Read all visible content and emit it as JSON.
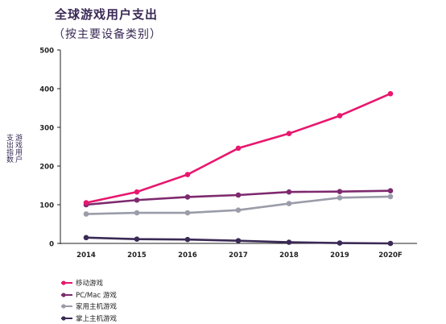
{
  "chart_data": {
    "type": "line",
    "title": "全球游戏用户支出",
    "subtitle": "（按主要设备类别）",
    "ylabel_lines": [
      "游戏用户",
      "支出指数"
    ],
    "xlabel": "",
    "categories": [
      "2014",
      "2015",
      "2016",
      "2017",
      "2018",
      "2019",
      "2020F"
    ],
    "ylim": [
      0,
      500
    ],
    "yticks": [
      "0",
      "100",
      "200",
      "300",
      "400",
      "500"
    ],
    "grid": false,
    "legend_position": "bottom-left",
    "series": [
      {
        "name": "移动游戏",
        "color": "#e8176f",
        "values": [
          105,
          133,
          178,
          246,
          284,
          330,
          387
        ]
      },
      {
        "name": "PC/Mac 游戏",
        "color": "#7e2a6e",
        "values": [
          100,
          112,
          120,
          125,
          133,
          134,
          136
        ]
      },
      {
        "name": "家用主机游戏",
        "color": "#9a9ca8",
        "values": [
          76,
          79,
          79,
          86,
          103,
          118,
          121
        ]
      },
      {
        "name": "掌上主机游戏",
        "color": "#3a2a55",
        "values": [
          15,
          11,
          10,
          7,
          3,
          1,
          0
        ]
      }
    ]
  }
}
